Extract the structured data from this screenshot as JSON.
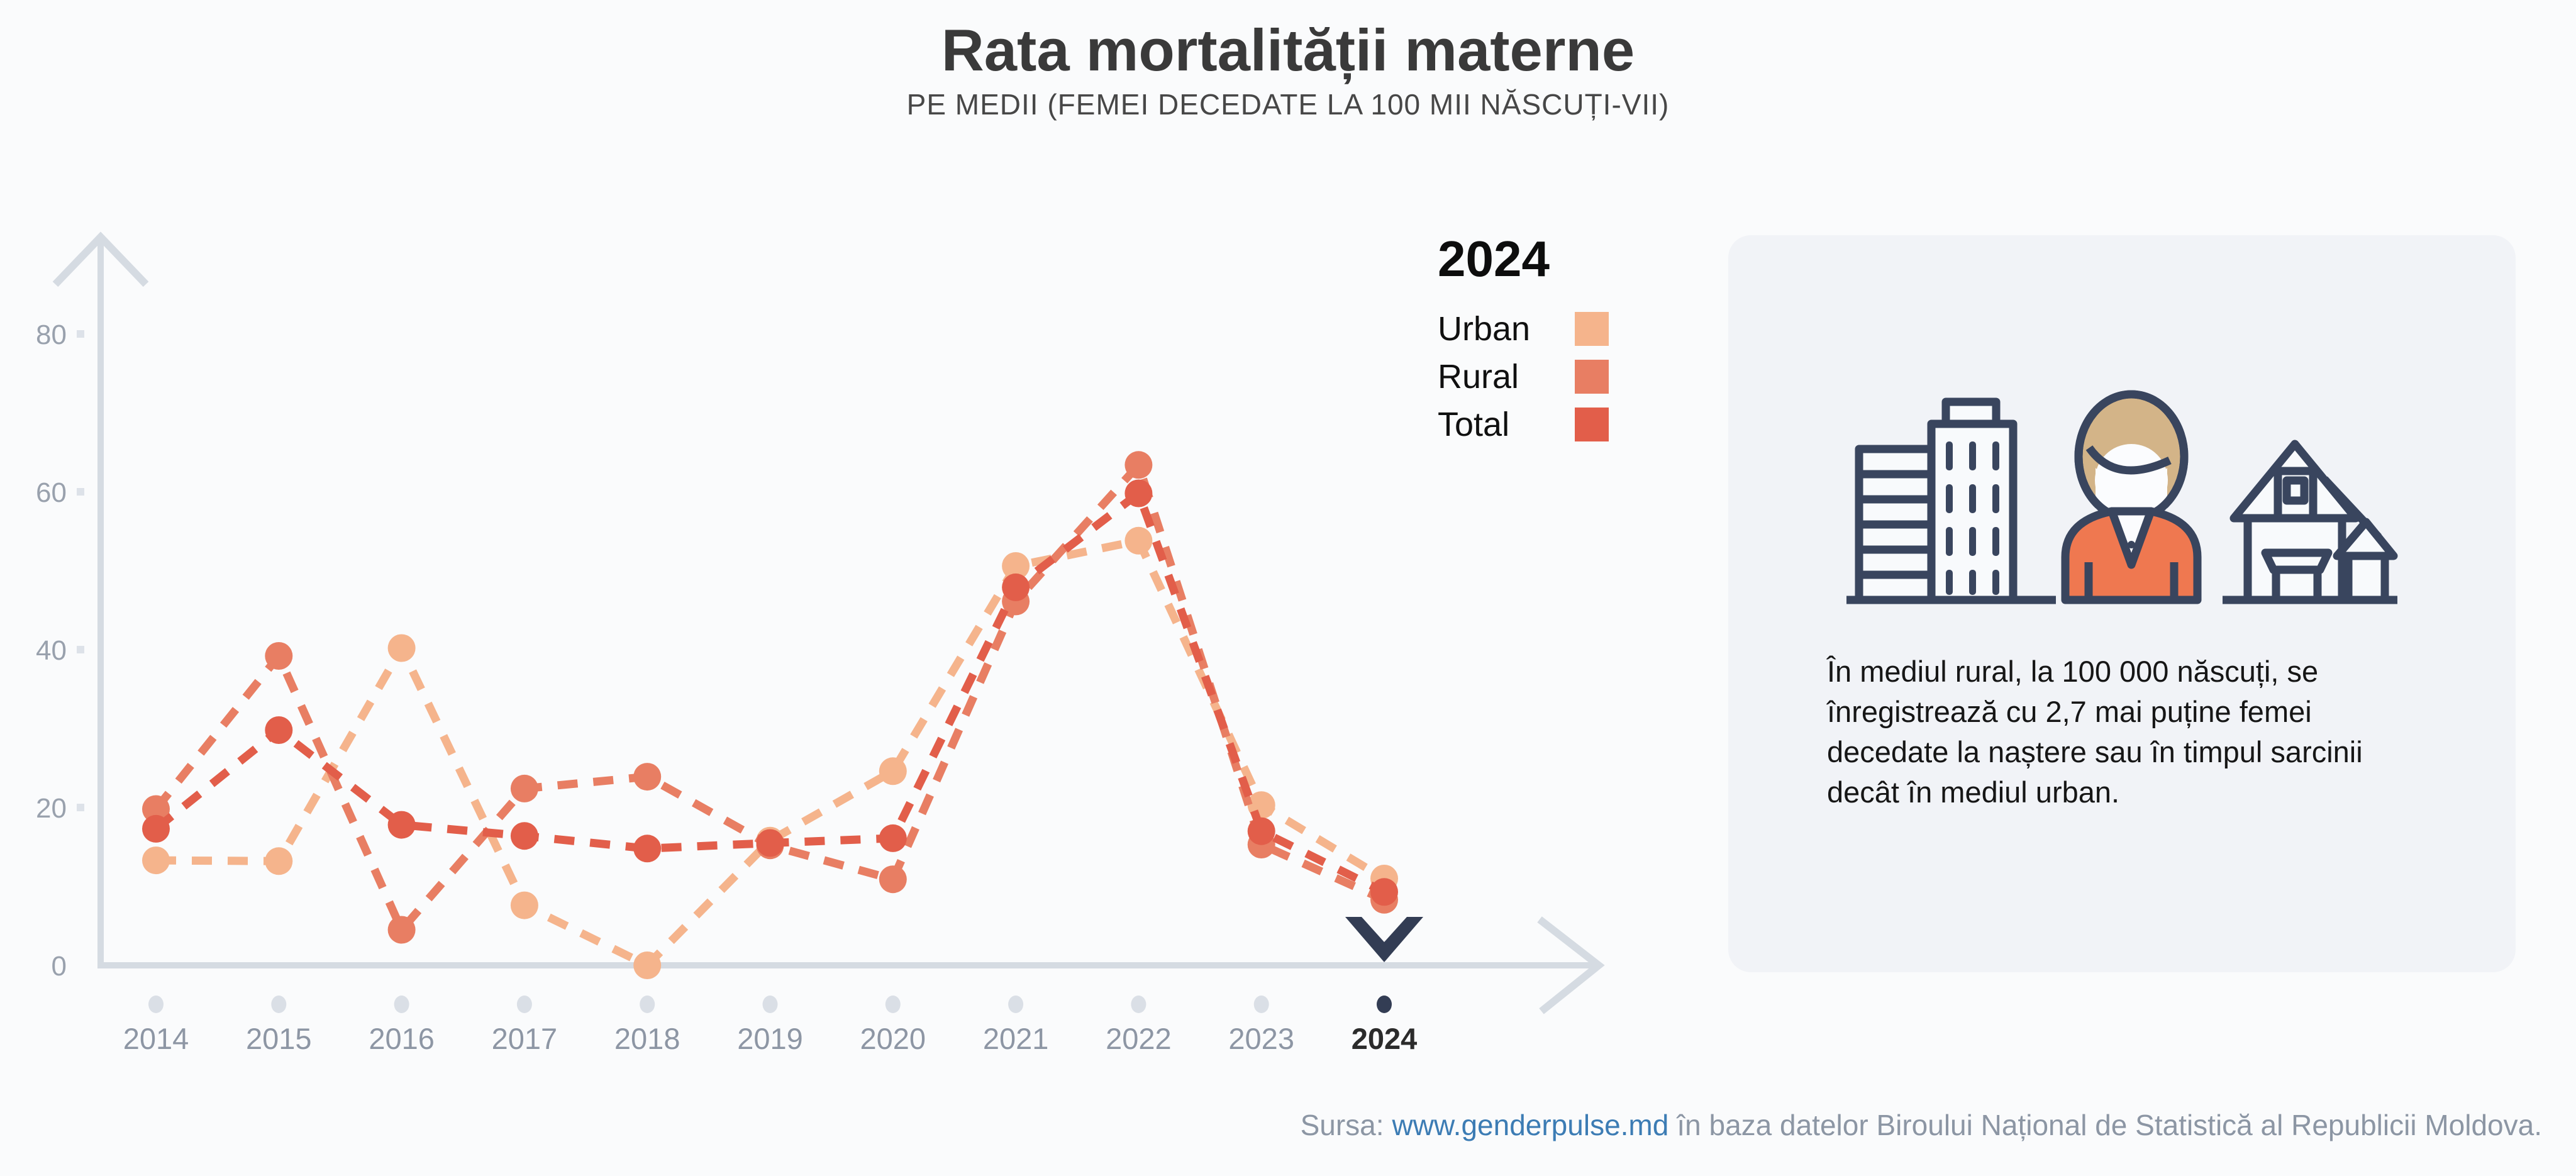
{
  "header": {
    "title": "Rata mortalității materne",
    "subtitle": "PE MEDII (FEMEI DECEDATE LA 100 MII NĂSCUȚI-VII)"
  },
  "legend": {
    "selected_year": "2024",
    "items": [
      {
        "label": "Urban",
        "color": "#F5B48C"
      },
      {
        "label": "Rural",
        "color": "#E87E63"
      },
      {
        "label": "Total",
        "color": "#E25E4A"
      }
    ]
  },
  "chart_data": {
    "type": "line",
    "title": "Rata mortalității materne",
    "subtitle": "Pe medii (femei decedate la 100 mii născuți-vii)",
    "x": [
      2014,
      2015,
      2016,
      2017,
      2018,
      2019,
      2020,
      2021,
      2022,
      2023,
      2024
    ],
    "series": [
      {
        "name": "Urban",
        "color": "#F5B48C",
        "values": [
          13.3,
          13.2,
          40.2,
          7.6,
          0,
          15.8,
          24.6,
          50.6,
          53.8,
          20.3,
          11.0
        ]
      },
      {
        "name": "Rural",
        "color": "#E87E63",
        "values": [
          19.8,
          39.2,
          4.5,
          22.4,
          23.9,
          15.2,
          10.9,
          46.1,
          63.4,
          15.3,
          8.3
        ]
      },
      {
        "name": "Total",
        "color": "#E25E4A",
        "values": [
          17.3,
          29.8,
          17.8,
          16.4,
          14.8,
          15.5,
          16.1,
          47.9,
          59.8,
          17.0,
          9.3
        ]
      }
    ],
    "ylim": [
      0,
      88
    ],
    "y_ticks": [
      0,
      20,
      40,
      60,
      80
    ],
    "selected_year": 2024,
    "line_style": "dashed",
    "grid": false,
    "legend_position": "right-of-chart"
  },
  "card": {
    "icons": [
      "city-buildings-icon",
      "woman-icon",
      "village-houses-icon"
    ],
    "text": "În mediul rural, la 100 000 născuți, se înregistrează cu 2,7 mai puține femei decedate la naștere sau în timpul sarcinii decât în mediul urban."
  },
  "footer": {
    "prefix": "Sursa:",
    "link": "www.genderpulse.md",
    "suffix": "în baza datelor Biroului Național de Statistică al Republicii Moldova."
  },
  "colors": {
    "page_bg": "#FAFBFC",
    "card_bg": "#F1F3F7",
    "axis": "#D5DBE2",
    "tick_square": "#DDE2E9",
    "y_label": "#99A1AD",
    "x_label": "#8D96A4",
    "x_label_selected": "#2B2B2B",
    "year_dot": "#DADFE6",
    "selected_marker": "#333D54",
    "icon_outline": "#39455E",
    "icon_jacket": "#EF7850",
    "icon_hair": "#D3B488"
  }
}
